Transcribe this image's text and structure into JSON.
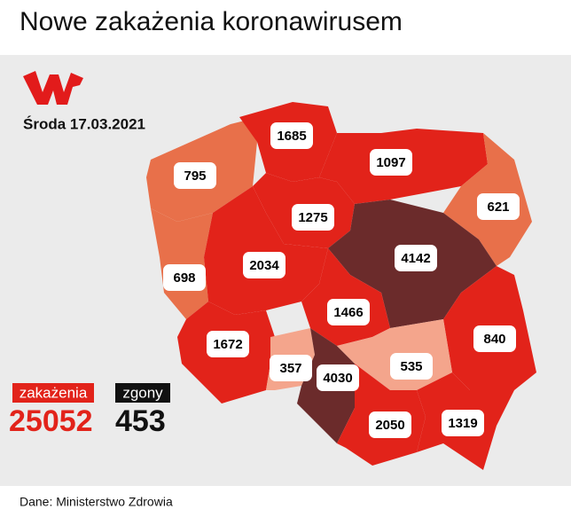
{
  "title": "Nowe zakażenia koronawirusem",
  "date": "Środa 17.03.2021",
  "regions": [
    795,
    1685,
    1097,
    621,
    1275,
    4142,
    698,
    2034,
    1466,
    840,
    1672,
    357,
    4030,
    535,
    2050,
    1319
  ],
  "totals": {
    "infections_label": "zakażenia",
    "infections": 25052,
    "deaths_label": "zgony",
    "deaths": 453
  },
  "source": "Dane: Ministerstwo Zdrowia"
}
